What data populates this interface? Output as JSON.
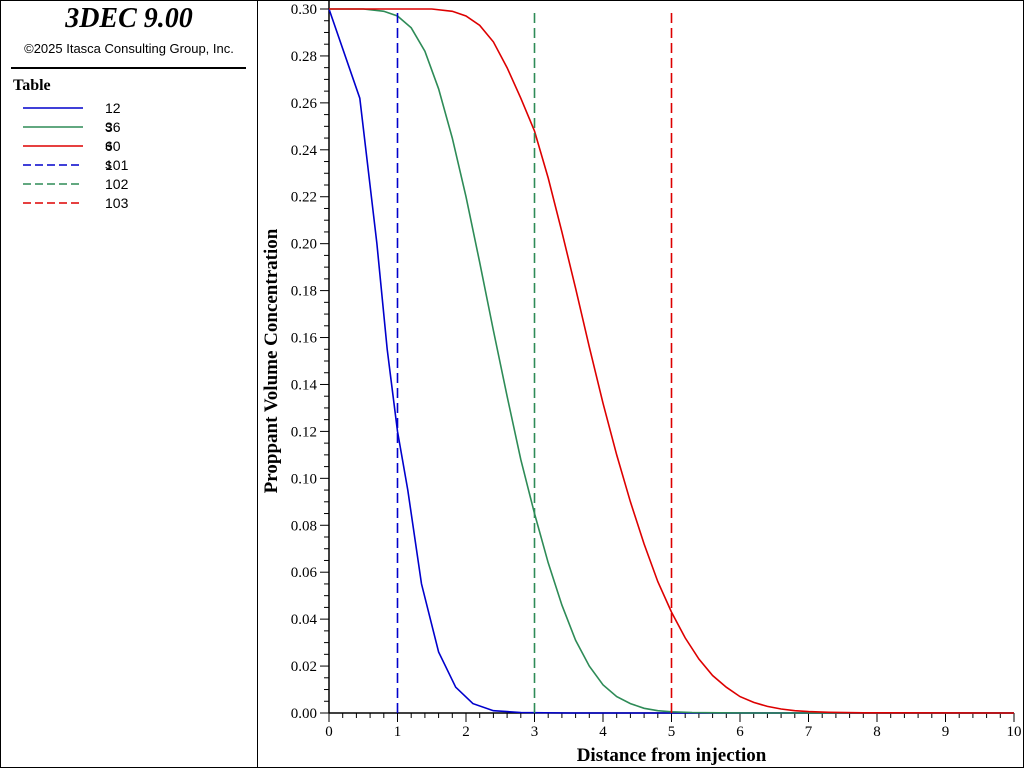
{
  "sidebar": {
    "app_title": "3DEC 9.00",
    "copyright": "©2025 Itasca Consulting Group, Inc.",
    "legend_title": "Table",
    "legend_items": [
      {
        "label": "12 s",
        "color": "#0000cc",
        "dashed": false
      },
      {
        "label": "36 s",
        "color": "#2e8b57",
        "dashed": false
      },
      {
        "label": "60 s",
        "color": "#dd0000",
        "dashed": false
      },
      {
        "label": "101",
        "color": "#0000cc",
        "dashed": true
      },
      {
        "label": "102",
        "color": "#2e8b57",
        "dashed": true
      },
      {
        "label": "103",
        "color": "#dd0000",
        "dashed": true
      }
    ]
  },
  "chart_data": {
    "type": "line",
    "title": "",
    "xlabel": "Distance from injection",
    "ylabel": "Proppant Volume Concentration",
    "xlim": [
      0,
      10
    ],
    "ylim": [
      0,
      0.3
    ],
    "x_ticks": [
      "0",
      "1",
      "2",
      "3",
      "4",
      "5",
      "6",
      "7",
      "8",
      "9",
      "10"
    ],
    "y_ticks": [
      "0.00",
      "0.02",
      "0.04",
      "0.06",
      "0.08",
      "0.10",
      "0.12",
      "0.14",
      "0.16",
      "0.18",
      "0.20",
      "0.22",
      "0.24",
      "0.26",
      "0.28",
      "0.30"
    ],
    "grid": false,
    "legend_position": "left-panel",
    "series": [
      {
        "name": "12 s",
        "color": "#0000cc",
        "dashed": false,
        "x": [
          0,
          0.45,
          0.7,
          0.85,
          1.0,
          1.15,
          1.35,
          1.6,
          1.85,
          2.1,
          2.4,
          2.8,
          3.5,
          10
        ],
        "y": [
          0.3,
          0.262,
          0.2,
          0.155,
          0.12,
          0.095,
          0.055,
          0.026,
          0.011,
          0.004,
          0.001,
          0.0002,
          0,
          0
        ]
      },
      {
        "name": "36 s",
        "color": "#2e8b57",
        "dashed": false,
        "x": [
          0,
          0.5,
          0.8,
          1.0,
          1.2,
          1.4,
          1.6,
          1.8,
          2.0,
          2.2,
          2.4,
          2.6,
          2.8,
          3.0,
          3.2,
          3.4,
          3.6,
          3.8,
          4.0,
          4.2,
          4.4,
          4.6,
          4.8,
          5.0,
          5.3,
          5.7,
          6.2,
          10
        ],
        "y": [
          0.3,
          0.3,
          0.299,
          0.297,
          0.292,
          0.282,
          0.266,
          0.245,
          0.22,
          0.192,
          0.163,
          0.135,
          0.108,
          0.085,
          0.064,
          0.046,
          0.031,
          0.02,
          0.012,
          0.007,
          0.004,
          0.002,
          0.001,
          0.0005,
          0.0002,
          0.0001,
          0,
          0
        ]
      },
      {
        "name": "60 s",
        "color": "#dd0000",
        "dashed": false,
        "x": [
          0,
          1.5,
          1.8,
          2.0,
          2.2,
          2.4,
          2.6,
          2.8,
          3.0,
          3.2,
          3.4,
          3.6,
          3.8,
          4.0,
          4.2,
          4.4,
          4.6,
          4.8,
          5.0,
          5.2,
          5.4,
          5.6,
          5.8,
          6.0,
          6.2,
          6.4,
          6.6,
          6.8,
          7.0,
          7.3,
          7.8,
          10
        ],
        "y": [
          0.3,
          0.3,
          0.299,
          0.297,
          0.293,
          0.286,
          0.275,
          0.262,
          0.248,
          0.228,
          0.205,
          0.181,
          0.156,
          0.132,
          0.11,
          0.09,
          0.072,
          0.056,
          0.043,
          0.032,
          0.023,
          0.016,
          0.011,
          0.007,
          0.0045,
          0.0028,
          0.0017,
          0.001,
          0.0006,
          0.0003,
          0.0001,
          0
        ]
      },
      {
        "name": "101",
        "color": "#0000cc",
        "dashed": true,
        "x": [
          1,
          1
        ],
        "y": [
          0,
          0.3
        ]
      },
      {
        "name": "102",
        "color": "#2e8b57",
        "dashed": true,
        "x": [
          3,
          3
        ],
        "y": [
          0,
          0.3
        ]
      },
      {
        "name": "103",
        "color": "#dd0000",
        "dashed": true,
        "x": [
          5,
          5
        ],
        "y": [
          0,
          0.3
        ]
      }
    ]
  }
}
